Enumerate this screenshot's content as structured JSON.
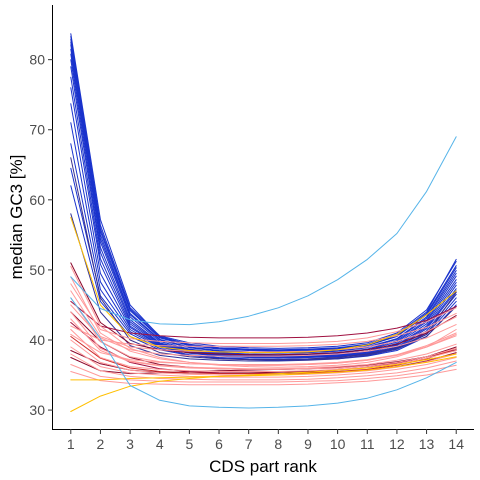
{
  "chart_data": {
    "type": "line",
    "xlabel": "CDS part rank",
    "ylabel": "median GC3 [%]",
    "x": [
      1,
      2,
      3,
      4,
      5,
      6,
      7,
      8,
      9,
      10,
      11,
      12,
      13,
      14
    ],
    "x_ticks": [
      "1",
      "2",
      "3",
      "4",
      "5",
      "6",
      "7",
      "8",
      "9",
      "10",
      "11",
      "12",
      "13",
      "14"
    ],
    "y_ticks": [
      30,
      40,
      50,
      60,
      70,
      80
    ],
    "xlim": [
      0.4,
      14.6
    ],
    "ylim": [
      27.3,
      87.8
    ],
    "grid": false,
    "legend": "none",
    "series": [
      {
        "color": "#1a33cc",
        "values": [
          83.7,
          57.2,
          45.0,
          40.5,
          39.4,
          38.9,
          38.7,
          38.6,
          38.7,
          38.9,
          39.4,
          40.8,
          44.0,
          51.5
        ]
      },
      {
        "color": "#1a33cc",
        "values": [
          83.3,
          56.4,
          44.6,
          40.6,
          39.6,
          39.1,
          38.9,
          38.8,
          38.9,
          39.1,
          39.6,
          41.0,
          44.3,
          51.2
        ]
      },
      {
        "color": "#1a33cc",
        "values": [
          82.9,
          55.9,
          44.4,
          40.4,
          39.3,
          38.8,
          38.6,
          38.5,
          38.6,
          38.8,
          39.3,
          40.6,
          43.8,
          50.6
        ]
      },
      {
        "color": "#1a33cc",
        "values": [
          82.5,
          55.5,
          44.2,
          40.3,
          39.2,
          38.7,
          38.5,
          38.4,
          38.5,
          38.7,
          39.2,
          40.5,
          43.6,
          50.3
        ]
      },
      {
        "color": "#1a33cc",
        "values": [
          82.1,
          55.0,
          43.8,
          40.1,
          39.0,
          38.5,
          38.3,
          38.2,
          38.3,
          38.5,
          39.0,
          40.2,
          43.3,
          49.9
        ]
      },
      {
        "color": "#1a33cc",
        "values": [
          81.5,
          54.5,
          43.6,
          40.0,
          38.9,
          38.4,
          38.2,
          38.1,
          38.2,
          38.4,
          38.9,
          40.1,
          43.1,
          49.5
        ]
      },
      {
        "color": "#1a33cc",
        "values": [
          80.8,
          54.0,
          43.3,
          39.8,
          38.7,
          38.2,
          38.0,
          37.9,
          38.0,
          38.2,
          38.7,
          39.9,
          42.8,
          49.1
        ]
      },
      {
        "color": "#1a33cc",
        "values": [
          80.0,
          53.2,
          42.9,
          39.6,
          38.6,
          38.1,
          37.9,
          37.8,
          37.9,
          38.1,
          38.6,
          39.7,
          42.6,
          48.6
        ]
      },
      {
        "color": "#1a33cc",
        "values": [
          79.0,
          52.5,
          42.6,
          39.5,
          38.5,
          38.0,
          37.8,
          37.7,
          37.8,
          38.0,
          38.4,
          39.5,
          42.3,
          48.2
        ]
      },
      {
        "color": "#1a33cc",
        "values": [
          77.5,
          51.6,
          42.3,
          39.4,
          38.4,
          38.0,
          37.8,
          37.7,
          37.8,
          37.9,
          38.3,
          39.3,
          42.0,
          47.8
        ]
      },
      {
        "color": "#1a33cc",
        "values": [
          76.0,
          50.8,
          42.0,
          39.3,
          38.3,
          37.9,
          37.7,
          37.6,
          37.7,
          37.8,
          38.2,
          39.2,
          41.8,
          47.3
        ]
      },
      {
        "color": "#1a33cc",
        "values": [
          73.7,
          49.5,
          41.8,
          39.2,
          38.2,
          37.8,
          37.6,
          37.5,
          37.6,
          37.7,
          38.1,
          39.0,
          41.6,
          47.0
        ]
      },
      {
        "color": "#1a33cc",
        "values": [
          71.0,
          48.3,
          41.5,
          39.1,
          38.2,
          37.8,
          37.6,
          37.5,
          37.6,
          37.7,
          38.0,
          38.9,
          41.3,
          46.5
        ]
      },
      {
        "color": "#1a33cc",
        "values": [
          68.0,
          47.2,
          41.2,
          39.0,
          38.1,
          37.7,
          37.5,
          37.4,
          37.5,
          37.6,
          37.9,
          38.8,
          41.0,
          46.0
        ]
      },
      {
        "color": "#1a33cc",
        "values": [
          64.5,
          46.3,
          40.9,
          38.8,
          37.9,
          37.5,
          37.3,
          37.2,
          37.3,
          37.4,
          37.8,
          38.7,
          40.8,
          45.5
        ]
      },
      {
        "color": "#1a33cc",
        "values": [
          62.0,
          45.5,
          40.5,
          38.6,
          37.8,
          37.4,
          37.2,
          37.1,
          37.2,
          37.3,
          37.7,
          38.5,
          40.5,
          45.0
        ]
      },
      {
        "color": "#3a2f8a",
        "values": [
          66.0,
          46.0,
          40.0,
          38.2,
          37.6,
          37.3,
          37.2,
          37.2,
          37.3,
          37.5,
          38.0,
          38.9,
          40.8,
          46.8
        ]
      },
      {
        "color": "#333399",
        "values": [
          58.0,
          44.0,
          39.2,
          37.8,
          37.3,
          37.1,
          37.0,
          37.0,
          37.1,
          37.3,
          37.8,
          38.7,
          40.5,
          44.8
        ]
      },
      {
        "color": "#8b0a2e",
        "values": [
          51.0,
          42.5,
          39.5,
          38.6,
          38.2,
          38.0,
          37.9,
          37.9,
          38.0,
          38.2,
          38.6,
          39.4,
          41.0,
          43.5
        ]
      },
      {
        "color": "#8b0a2e",
        "values": [
          44.0,
          39.8,
          37.5,
          36.5,
          36.1,
          35.9,
          35.8,
          35.8,
          35.9,
          36.0,
          36.3,
          36.8,
          37.6,
          38.6
        ]
      },
      {
        "color": "#8b0a2e",
        "values": [
          38.5,
          36.6,
          35.7,
          35.4,
          35.3,
          35.3,
          35.3,
          35.4,
          35.5,
          35.7,
          36.1,
          36.7,
          37.6,
          39.0
        ]
      },
      {
        "color": "#8b0a2e",
        "values": [
          37.5,
          35.6,
          35.2,
          35.3,
          35.5,
          35.6,
          35.7,
          35.8,
          35.9,
          36.1,
          36.4,
          36.9,
          37.6,
          38.5
        ]
      },
      {
        "color": "#a01040",
        "values": [
          45.5,
          42.0,
          41.0,
          40.6,
          40.4,
          40.3,
          40.3,
          40.3,
          40.4,
          40.6,
          41.0,
          41.7,
          42.8,
          44.8
        ]
      },
      {
        "color": "#a01040",
        "values": [
          42.5,
          39.0,
          36.8,
          35.9,
          35.5,
          35.3,
          35.2,
          35.2,
          35.3,
          35.4,
          35.7,
          36.2,
          37.0,
          38.2
        ]
      },
      {
        "color": "#cc2a2a",
        "values": [
          40.5,
          37.4,
          36.0,
          35.5,
          35.3,
          35.2,
          35.2,
          35.2,
          35.3,
          35.5,
          35.8,
          36.4,
          37.3,
          38.8
        ]
      },
      {
        "color": "#ff9a9a",
        "values": [
          50.5,
          42.0,
          38.8,
          37.5,
          36.8,
          36.4,
          36.2,
          36.1,
          36.2,
          36.4,
          36.8,
          37.6,
          39.0,
          41.5
        ]
      },
      {
        "color": "#ff9a9a",
        "values": [
          49.0,
          41.0,
          38.4,
          37.3,
          36.8,
          36.5,
          36.4,
          36.4,
          36.5,
          36.7,
          37.1,
          37.8,
          39.0,
          40.8
        ]
      },
      {
        "color": "#ff9a9a",
        "values": [
          48.0,
          41.5,
          40.2,
          39.8,
          39.6,
          39.5,
          39.5,
          39.5,
          39.6,
          39.8,
          40.3,
          41.2,
          42.6,
          44.6
        ]
      },
      {
        "color": "#ff9a9a",
        "values": [
          47.0,
          40.5,
          39.0,
          38.6,
          38.4,
          38.3,
          38.3,
          38.3,
          38.4,
          38.6,
          39.0,
          39.8,
          41.2,
          43.3
        ]
      },
      {
        "color": "#ff9a9a",
        "values": [
          46.0,
          39.8,
          37.6,
          36.9,
          36.6,
          36.5,
          36.4,
          36.4,
          36.5,
          36.7,
          37.1,
          37.9,
          39.2,
          41.0
        ]
      },
      {
        "color": "#ff9a9a",
        "values": [
          45.0,
          40.3,
          38.6,
          38.0,
          37.8,
          37.7,
          37.7,
          37.7,
          37.8,
          38.0,
          38.4,
          39.1,
          40.3,
          42.2
        ]
      },
      {
        "color": "#ff9a9a",
        "values": [
          44.0,
          38.8,
          37.0,
          36.4,
          36.1,
          36.0,
          35.9,
          35.9,
          36.0,
          36.2,
          36.5,
          37.1,
          38.0,
          39.4
        ]
      },
      {
        "color": "#ff9a9a",
        "values": [
          43.0,
          38.5,
          36.9,
          36.3,
          36.0,
          35.9,
          35.8,
          35.8,
          35.9,
          36.0,
          36.3,
          36.8,
          37.6,
          38.8
        ]
      },
      {
        "color": "#ff9a9a",
        "values": [
          41.5,
          37.5,
          36.2,
          35.8,
          35.6,
          35.5,
          35.5,
          35.5,
          35.6,
          35.8,
          36.1,
          36.6,
          37.4,
          38.5
        ]
      },
      {
        "color": "#ff9a9a",
        "values": [
          40.0,
          36.8,
          35.7,
          35.3,
          35.1,
          35.0,
          35.0,
          35.0,
          35.1,
          35.3,
          35.6,
          36.1,
          36.9,
          38.0
        ]
      },
      {
        "color": "#ff9a9a",
        "values": [
          39.0,
          36.2,
          35.3,
          35.0,
          34.8,
          34.7,
          34.7,
          34.7,
          34.8,
          35.0,
          35.3,
          35.8,
          36.5,
          37.5
        ]
      },
      {
        "color": "#ff9a9a",
        "values": [
          38.0,
          35.6,
          34.8,
          34.5,
          34.4,
          34.3,
          34.3,
          34.3,
          34.4,
          34.6,
          34.9,
          35.3,
          36.0,
          37.0
        ]
      },
      {
        "color": "#ff9a9a",
        "values": [
          36.5,
          34.8,
          34.3,
          34.1,
          34.0,
          34.0,
          34.0,
          34.0,
          34.1,
          34.2,
          34.5,
          34.9,
          35.5,
          36.4
        ]
      },
      {
        "color": "#ff9a9a",
        "values": [
          35.5,
          34.2,
          33.8,
          33.7,
          33.6,
          33.6,
          33.6,
          33.6,
          33.7,
          33.9,
          34.1,
          34.5,
          35.0,
          35.8
        ]
      },
      {
        "color": "#ff9a9a",
        "values": [
          42.0,
          40.0,
          39.4,
          39.2,
          39.1,
          39.1,
          39.1,
          39.1,
          39.2,
          39.4,
          39.8,
          40.6,
          41.8,
          43.8
        ]
      },
      {
        "color": "#ff9a9a",
        "values": [
          40.8,
          38.2,
          37.2,
          36.8,
          36.6,
          36.5,
          36.5,
          36.5,
          36.6,
          36.8,
          37.2,
          37.9,
          39.0,
          40.6
        ]
      },
      {
        "color": "#ffbf00",
        "values": [
          57.5,
          45.0,
          40.5,
          39.0,
          38.5,
          38.3,
          38.2,
          38.2,
          38.3,
          38.6,
          39.3,
          40.8,
          43.6,
          47.0
        ]
      },
      {
        "color": "#ffbf00",
        "values": [
          29.8,
          32.0,
          33.4,
          34.1,
          34.5,
          34.8,
          35.0,
          35.2,
          35.4,
          35.7,
          36.0,
          36.5,
          37.2,
          38.0
        ]
      },
      {
        "color": "#ffbf00",
        "values": [
          34.3,
          34.3,
          34.5,
          34.6,
          34.7,
          34.8,
          34.9,
          35.0,
          35.2,
          35.4,
          35.7,
          36.2,
          36.8,
          37.6
        ]
      },
      {
        "color": "#56b4e9",
        "values": [
          46.0,
          40.2,
          33.5,
          31.4,
          30.6,
          30.4,
          30.3,
          30.4,
          30.6,
          31.0,
          31.7,
          32.9,
          34.6,
          36.8
        ]
      },
      {
        "color": "#56b4e9",
        "values": [
          49.0,
          44.5,
          42.9,
          42.3,
          42.2,
          42.6,
          43.4,
          44.6,
          46.3,
          48.6,
          51.5,
          55.2,
          61.2,
          69.0
        ]
      }
    ]
  }
}
